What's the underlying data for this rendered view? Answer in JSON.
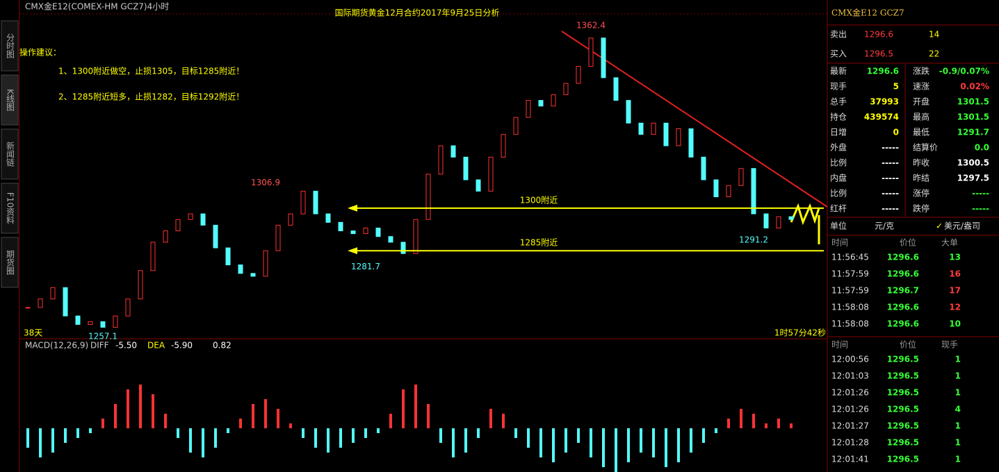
{
  "header": {
    "symbol": "CMX金E12(COMEX-HM GCZ7)4小时",
    "title": "国际期货黄金12月合约2017年9月25日分析"
  },
  "side_tabs": [
    "分时图",
    "K线图",
    "新闻链",
    "F10资料",
    "期货圈"
  ],
  "advice": {
    "heading": "操作建议：",
    "lines": [
      "1、1300附近做空，止损1305，目标1285附近！",
      "2、1285附近短多，止损1282，目标1292附近！"
    ]
  },
  "chart_data": {
    "type": "candlestick",
    "ylim": [
      1254.7,
      1368.5
    ],
    "closes": [
      1265,
      1268,
      1272,
      1262,
      1259,
      1260,
      1258,
      1262,
      1268,
      1278,
      1288,
      1292,
      1296,
      1298,
      1294,
      1286,
      1280,
      1277,
      1276,
      1285,
      1294,
      1298,
      1306,
      1298,
      1295,
      1292,
      1291,
      1293,
      1290,
      1288,
      1284,
      1296,
      1312,
      1322,
      1318,
      1310,
      1306,
      1318,
      1326,
      1332,
      1338,
      1336,
      1340,
      1344,
      1350,
      1360,
      1346,
      1338,
      1330,
      1326,
      1330,
      1322,
      1328,
      1318,
      1310,
      1304,
      1308,
      1314,
      1298,
      1293,
      1297,
      1296
    ],
    "price_labels": [
      {
        "value": 1362.4,
        "index": 45
      },
      {
        "value": 1306.9,
        "index": 19
      },
      {
        "value": 1281.7,
        "index": 27
      },
      {
        "value": 1257.1,
        "index": 6
      },
      {
        "value": 1291.2,
        "index": 58
      }
    ],
    "levels": [
      {
        "value": 1300,
        "label": "1300附近"
      },
      {
        "value": 1285,
        "label": "1285附近"
      }
    ],
    "period": "38天",
    "countdown": "1时57分42秒"
  },
  "macd_data": {
    "type": "bar",
    "ylim": [
      -9,
      16
    ],
    "label": "MACD(12,26,9)",
    "diff_name": "DIFF",
    "diff": {
      "value": -5.5,
      "label": "-5.50"
    },
    "dea_name": "DEA",
    "dea": {
      "value": -5.9,
      "label": "-5.90"
    },
    "macd": 0.82,
    "values": [
      -4,
      -6,
      -5,
      -3,
      -2,
      -1,
      2,
      5,
      8,
      9,
      7,
      3,
      -2,
      -5,
      -6,
      -4,
      -1,
      2,
      5,
      6,
      4,
      1,
      -2,
      -4,
      -5,
      -4,
      -3,
      -2,
      -1,
      3,
      8,
      9,
      5,
      -3,
      -6,
      -5,
      -2,
      4,
      3,
      -2,
      -4,
      -6,
      -7,
      -5,
      -3,
      -6,
      -8,
      -9,
      -7,
      -5,
      -6,
      -8,
      -7,
      -5,
      -3,
      -1,
      2,
      4,
      3,
      1,
      2,
      1
    ]
  },
  "panel": {
    "title": "CMX金E12  GCZ7",
    "bidask": [
      [
        "卖出",
        "1296.6",
        "14"
      ],
      [
        "买入",
        "1296.5",
        "22"
      ]
    ],
    "quotes": [
      [
        "最新",
        "1296.6",
        "涨跌",
        "-0.9/0.07%"
      ],
      [
        "现手",
        "5",
        "速涨",
        "0.02%"
      ],
      [
        "总手",
        "37993",
        "开盘",
        "1301.5"
      ],
      [
        "持仓",
        "439574",
        "最高",
        "1301.5"
      ],
      [
        "日增",
        "0",
        "最低",
        "1291.7"
      ],
      [
        "外盘",
        "-----",
        "结算价",
        "0.0"
      ],
      [
        "比例",
        "-----",
        "昨收",
        "1300.5"
      ],
      [
        "内盘",
        "-----",
        "昨结",
        "1297.5"
      ],
      [
        "比例",
        "-----",
        "涨停",
        "-----"
      ],
      [
        "红杆",
        "-----",
        "跌停",
        "-----"
      ]
    ],
    "unit": [
      "单位",
      "元/克",
      "美元/盎司"
    ],
    "big_header": [
      "时间",
      "价位",
      "大单"
    ],
    "big_rows": [
      [
        "11:56:45",
        "1296.6",
        "13"
      ],
      [
        "11:57:59",
        "1296.6",
        "16"
      ],
      [
        "11:57:59",
        "1296.7",
        "17"
      ],
      [
        "11:58:08",
        "1296.6",
        "12"
      ],
      [
        "11:58:08",
        "1296.6",
        "10"
      ]
    ],
    "tick_header": [
      "时间",
      "价位",
      "现手"
    ],
    "tick_rows": [
      [
        "12:00:56",
        "1296.5",
        "1"
      ],
      [
        "12:01:03",
        "1296.5",
        "1"
      ],
      [
        "12:01:26",
        "1296.5",
        "1"
      ],
      [
        "12:01:26",
        "1296.5",
        "4"
      ],
      [
        "12:01:27",
        "1296.5",
        "1"
      ],
      [
        "12:01:28",
        "1296.5",
        "1"
      ],
      [
        "12:01:41",
        "1296.5",
        "1"
      ]
    ]
  }
}
